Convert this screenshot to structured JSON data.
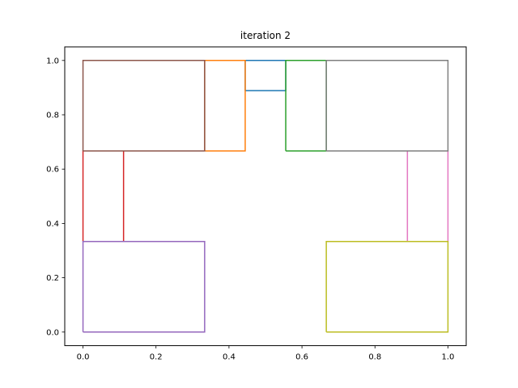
{
  "chart_data": {
    "type": "line",
    "title": "iteration 2",
    "xlabel": "",
    "ylabel": "",
    "xlim": [
      -0.05,
      1.05
    ],
    "ylim": [
      -0.05,
      1.05
    ],
    "grid": false,
    "x_ticks": [
      {
        "value": 0.0,
        "label": "0.0"
      },
      {
        "value": 0.2,
        "label": "0.2"
      },
      {
        "value": 0.4,
        "label": "0.4"
      },
      {
        "value": 0.6,
        "label": "0.6"
      },
      {
        "value": 0.8,
        "label": "0.8"
      },
      {
        "value": 1.0,
        "label": "1.0"
      }
    ],
    "y_ticks": [
      {
        "value": 0.0,
        "label": "0.0"
      },
      {
        "value": 0.2,
        "label": "0.2"
      },
      {
        "value": 0.4,
        "label": "0.4"
      },
      {
        "value": 0.6,
        "label": "0.6"
      },
      {
        "value": 0.8,
        "label": "0.8"
      },
      {
        "value": 1.0,
        "label": "1.0"
      }
    ],
    "series": [
      {
        "color": "#1f77b4",
        "x": [
          0.444444,
          0.555556,
          0.555556,
          0.444444,
          0.444444
        ],
        "y": [
          0.888889,
          0.888889,
          1.0,
          1.0,
          0.888889
        ]
      },
      {
        "color": "#ff7f0e",
        "x": [
          0.333333,
          0.444444,
          0.444444,
          0.333333,
          0.333333
        ],
        "y": [
          0.666667,
          0.666667,
          1.0,
          1.0,
          0.666667
        ]
      },
      {
        "color": "#2ca02c",
        "x": [
          0.555556,
          0.666667,
          0.666667,
          0.555556,
          0.555556
        ],
        "y": [
          0.666667,
          0.666667,
          1.0,
          1.0,
          0.666667
        ]
      },
      {
        "color": "#d62728",
        "x": [
          0.0,
          0.111111,
          0.111111,
          0.0,
          0.0
        ],
        "y": [
          0.333333,
          0.333333,
          0.666667,
          0.666667,
          0.333333
        ]
      },
      {
        "color": "#9467bd",
        "x": [
          0.0,
          0.333333,
          0.333333,
          0.0,
          0.0
        ],
        "y": [
          0.0,
          0.0,
          0.333333,
          0.333333,
          0.0
        ]
      },
      {
        "color": "#8c564b",
        "x": [
          0.0,
          0.333333,
          0.333333,
          0.0,
          0.0
        ],
        "y": [
          0.666667,
          0.666667,
          1.0,
          1.0,
          0.666667
        ]
      },
      {
        "color": "#e377c2",
        "x": [
          0.888889,
          1.0,
          1.0,
          0.888889,
          0.888889
        ],
        "y": [
          0.333333,
          0.333333,
          0.666667,
          0.666667,
          0.333333
        ]
      },
      {
        "color": "#7f7f7f",
        "x": [
          0.666667,
          1.0,
          1.0,
          0.666667,
          0.666667
        ],
        "y": [
          0.666667,
          0.666667,
          1.0,
          1.0,
          0.666667
        ]
      },
      {
        "color": "#bcbd22",
        "x": [
          0.666667,
          1.0,
          1.0,
          0.666667,
          0.666667
        ],
        "y": [
          0.0,
          0.0,
          0.333333,
          0.333333,
          0.0
        ]
      }
    ]
  }
}
